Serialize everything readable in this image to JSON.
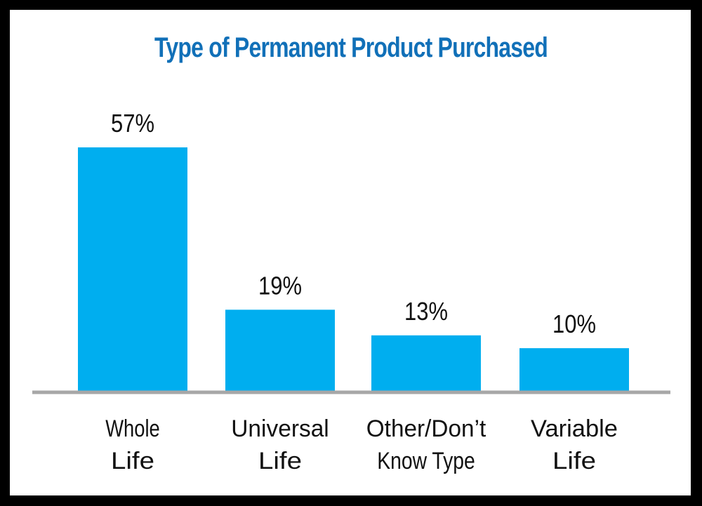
{
  "chart_data": {
    "type": "bar",
    "title": "Type of Permanent Product Purchased",
    "categories": [
      [
        "Whole",
        "Life"
      ],
      [
        "Universal",
        "Life"
      ],
      [
        "Other/Don’t",
        "Know Type"
      ],
      [
        "Variable",
        "Life"
      ]
    ],
    "values": [
      57,
      19,
      13,
      10
    ],
    "value_labels": [
      "57%",
      "19%",
      "13%",
      "10%"
    ],
    "xlabel": "",
    "ylabel": "",
    "ylim": [
      0,
      60
    ],
    "grid": false,
    "legend": "none"
  },
  "colors": {
    "bar": "#00aeef",
    "baseline": "#a7a7a7",
    "title": "#1170b8",
    "text": "#111111",
    "border": "#000000"
  }
}
